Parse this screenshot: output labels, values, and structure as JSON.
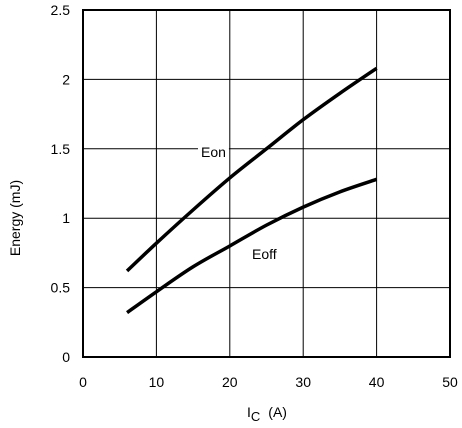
{
  "chart_data": {
    "type": "line",
    "xlabel": "I",
    "xlabel_sub": "C",
    "xlabel_unit": "(A)",
    "ylabel": "Energy (mJ)",
    "xlim": [
      0,
      50
    ],
    "ylim": [
      0,
      2.5
    ],
    "xticks": [
      0,
      10,
      20,
      30,
      40,
      50
    ],
    "yticks": [
      0,
      0.5,
      1,
      1.5,
      2,
      2.5
    ],
    "xtick_labels": [
      "0",
      "10",
      "20",
      "30",
      "40",
      "50"
    ],
    "ytick_labels": [
      "0",
      "0.5",
      "1",
      "1.5",
      "2",
      "2.5"
    ],
    "grid": true,
    "series": [
      {
        "name": "Eon",
        "x": [
          6,
          10,
          15,
          20,
          25,
          30,
          35,
          40
        ],
        "y": [
          0.62,
          0.82,
          1.06,
          1.29,
          1.5,
          1.71,
          1.9,
          2.08
        ]
      },
      {
        "name": "Eoff",
        "x": [
          6,
          10,
          15,
          20,
          25,
          30,
          35,
          40
        ],
        "y": [
          0.32,
          0.47,
          0.65,
          0.8,
          0.95,
          1.08,
          1.19,
          1.28
        ]
      }
    ]
  }
}
